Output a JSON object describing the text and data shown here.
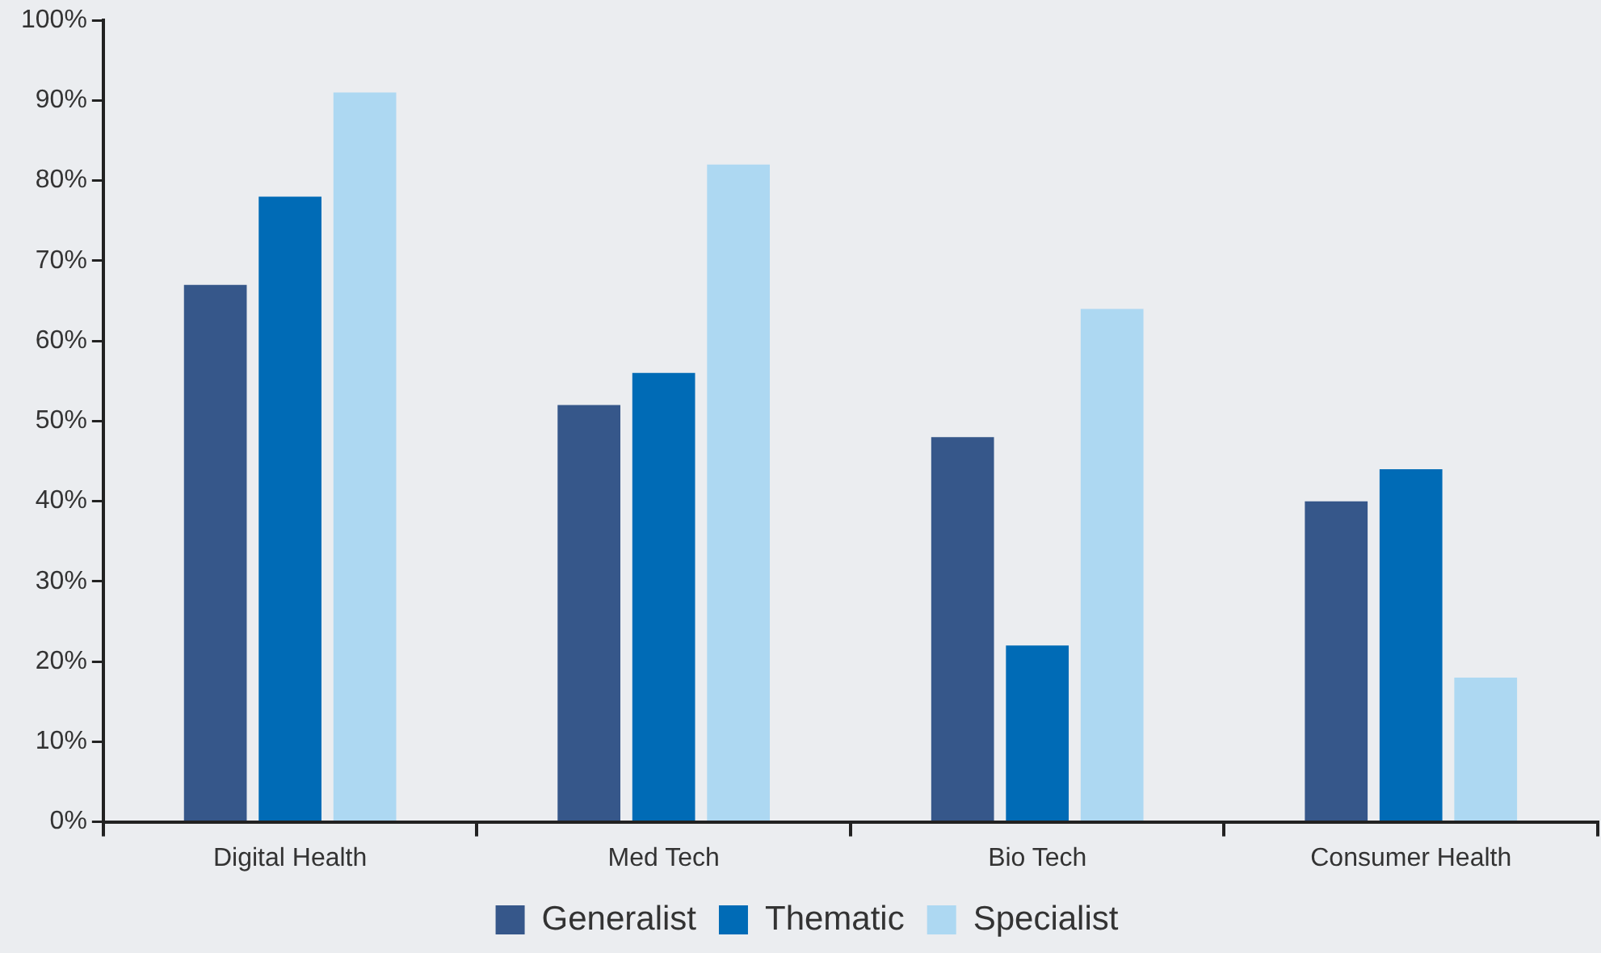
{
  "chart_data": {
    "type": "bar",
    "categories": [
      "Digital Health",
      "Med Tech",
      "Bio Tech",
      "Consumer Health"
    ],
    "series": [
      {
        "name": "Generalist",
        "color": "#36578a",
        "values": [
          67,
          52,
          48,
          40
        ]
      },
      {
        "name": "Thematic",
        "color": "#006bb6",
        "values": [
          78,
          56,
          22,
          44
        ]
      },
      {
        "name": "Specialist",
        "color": "#add8f2",
        "values": [
          91,
          82,
          64,
          18
        ]
      }
    ],
    "ylim": [
      0,
      100
    ],
    "yticks": [
      {
        "value": 0,
        "label": "0%"
      },
      {
        "value": 10,
        "label": "10%"
      },
      {
        "value": 20,
        "label": "20%"
      },
      {
        "value": 30,
        "label": "30%"
      },
      {
        "value": 40,
        "label": "40%"
      },
      {
        "value": 50,
        "label": "50%"
      },
      {
        "value": 60,
        "label": "60%"
      },
      {
        "value": 70,
        "label": "70%"
      },
      {
        "value": 80,
        "label": "80%"
      },
      {
        "value": 90,
        "label": "90%"
      },
      {
        "value": 100,
        "label": "100%"
      }
    ],
    "legend": "bottom"
  }
}
